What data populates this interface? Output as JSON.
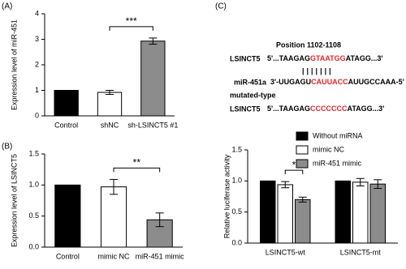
{
  "chart_data": [
    {
      "type": "bar",
      "label": "(A)",
      "y_label": "Expression level of miR-451",
      "categories": [
        "Control",
        "shNC",
        "sh-LSINCT5 #1"
      ],
      "values": [
        1.0,
        0.92,
        2.93
      ],
      "errors": [
        null,
        0.08,
        0.12
      ],
      "colors": [
        "#000000",
        "#ffffff",
        "#8c8c8c"
      ],
      "annotation": "***",
      "ylim": [
        0,
        4
      ],
      "yticks": [
        0,
        1,
        2,
        3,
        4
      ]
    },
    {
      "type": "bar",
      "label": "(B)",
      "y_label": "Expression level of LSINCT5",
      "categories": [
        "Control",
        "mimic NC",
        "miR-451 mimic"
      ],
      "values": [
        1.0,
        0.97,
        0.44
      ],
      "errors": [
        null,
        0.12,
        0.11
      ],
      "colors": [
        "#000000",
        "#ffffff",
        "#8c8c8c"
      ],
      "annotation": "**",
      "ylim": [
        0,
        1.5
      ],
      "yticks": [
        {
          "value": 0,
          "label": "0.0"
        },
        {
          "value": 0.5,
          "label": "0.5"
        },
        {
          "value": 1,
          "label": "1.0"
        },
        {
          "value": 1.5,
          "label": "1.5"
        }
      ]
    },
    {
      "type": "grouped_bar",
      "label": "(C)",
      "y_label": "Relative luciferase activity",
      "categories": [
        "LSINCT5-wt",
        "LSINCT5-mt"
      ],
      "series": [
        {
          "name": "Without miRNA",
          "color": "#000000",
          "values": [
            1.0,
            1.0
          ],
          "errors": [
            null,
            null
          ]
        },
        {
          "name": "mimic NC",
          "color": "#ffffff",
          "values": [
            0.94,
            0.98
          ],
          "errors": [
            0.05,
            0.06
          ]
        },
        {
          "name": "miR-451 mimic",
          "color": "#8c8c8c",
          "values": [
            0.7,
            0.95
          ],
          "errors": [
            0.04,
            0.07
          ]
        }
      ],
      "annotation": "*",
      "ylim": [
        0,
        1.5
      ],
      "yticks": [
        {
          "value": 0,
          "label": "0.0"
        },
        {
          "value": 0.5,
          "label": "0.5"
        },
        {
          "value": 1,
          "label": "1.0"
        },
        {
          "value": 1.5,
          "label": "1.5"
        }
      ]
    }
  ],
  "sequence": {
    "position": "Position 1102-1108",
    "wild": {
      "name": "LSINCT5",
      "left": "5'...TAAGAG",
      "site": "GTAATGG",
      "right": "ATAGG...3'"
    },
    "pairing": "|||||||",
    "mirna": {
      "name": "miR-451a",
      "left": "3'-UUGAGU",
      "site": "CAUUACC",
      "right": "AUUGCCAAA-5'"
    },
    "mutated_label": "mutated-type",
    "mutant": {
      "name": "LSINCT5",
      "left": "5'...TAAGAG",
      "site": "CCCCCCC",
      "right": "ATAGG...3'"
    }
  }
}
